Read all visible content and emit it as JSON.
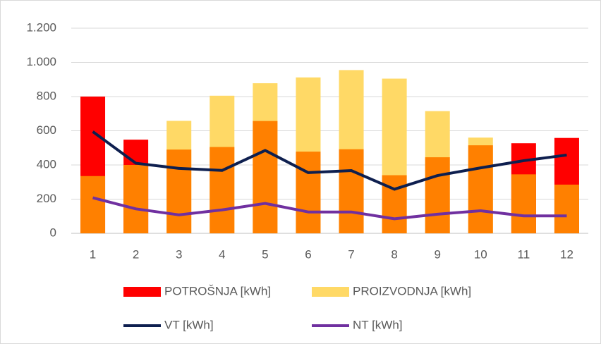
{
  "chart_data": {
    "type": "combo",
    "categories": [
      "1",
      "2",
      "3",
      "4",
      "5",
      "6",
      "7",
      "8",
      "9",
      "10",
      "11",
      "12"
    ],
    "series": [
      {
        "name": "POTROŠNJA [kWh]",
        "type": "bar",
        "color": "#ff0000",
        "values": [
          800,
          548,
          490,
          505,
          657,
          478,
          492,
          340,
          445,
          515,
          527,
          558
        ]
      },
      {
        "name": "PROIZVODNJA [kWh]",
        "type": "bar",
        "color": "#ffd966",
        "values": [
          335,
          400,
          658,
          805,
          878,
          912,
          955,
          905,
          715,
          560,
          345,
          285
        ]
      },
      {
        "name": "VT [kWh]",
        "type": "line",
        "color": "#0e1f4f",
        "values": [
          595,
          410,
          380,
          368,
          485,
          355,
          367,
          258,
          338,
          383,
          425,
          458
        ]
      },
      {
        "name": "NT [kWh]",
        "type": "line",
        "color": "#7030a0",
        "values": [
          208,
          143,
          108,
          137,
          175,
          125,
          125,
          85,
          112,
          132,
          102,
          102
        ]
      }
    ],
    "overlap_color": "#ff8000",
    "ylim": [
      0,
      1200
    ],
    "yticks": [
      0,
      200,
      400,
      600,
      800,
      {
        "value": 1000,
        "label": "1.000"
      },
      {
        "value": 1200,
        "label": "1.200"
      }
    ],
    "grid": true
  }
}
